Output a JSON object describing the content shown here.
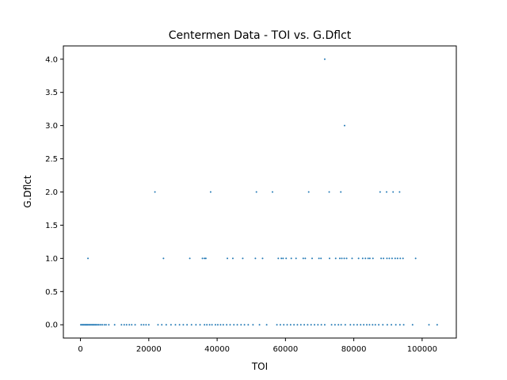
{
  "chart_data": {
    "type": "scatter",
    "title": "Centermen Data - TOI vs. G.Dflct",
    "xlabel": "TOI",
    "ylabel": "G.Dflct",
    "xlim": [
      -5000,
      110000
    ],
    "ylim": [
      -0.2,
      4.2
    ],
    "grid": false,
    "marker_color": "#1f77b4",
    "xticks": [
      0,
      20000,
      40000,
      60000,
      80000,
      100000
    ],
    "xtick_labels": [
      "0",
      "20000",
      "40000",
      "60000",
      "80000",
      "100000"
    ],
    "yticks": [
      0.0,
      0.5,
      1.0,
      1.5,
      2.0,
      2.5,
      3.0,
      3.5,
      4.0
    ],
    "ytick_labels": [
      "0.0",
      "0.5",
      "1.0",
      "1.5",
      "2.0",
      "2.5",
      "3.0",
      "3.5",
      "4.0"
    ],
    "series": [
      {
        "x": [
          100,
          400,
          700,
          900,
          1200,
          1400,
          1600,
          1800,
          2000,
          2200,
          2500,
          2800,
          3100,
          3400,
          3700,
          4000,
          4300,
          4600,
          5000,
          5400,
          5900,
          6400,
          7000,
          7500,
          8300,
          10000,
          12000,
          12800,
          13500,
          14300,
          15000,
          16000,
          17800,
          18500,
          19200,
          20000,
          22700,
          23800,
          25100,
          26500,
          27800,
          29000,
          30100,
          31200,
          32500,
          33800,
          35000,
          36300,
          37000,
          37800,
          38500,
          39500,
          40200,
          41000,
          41800,
          42800,
          43800,
          44900,
          45900,
          47000,
          48000,
          49100,
          50500,
          52400,
          54500,
          57500,
          58500,
          59500,
          60500,
          61500,
          62500,
          63500,
          64500,
          65500,
          66500,
          67500,
          68500,
          69500,
          70500,
          71500,
          73500,
          74500,
          75500,
          76300,
          77500,
          79000,
          80000,
          81000,
          82000,
          82900,
          83800,
          84600,
          85500,
          86300,
          87300,
          88500,
          89800,
          91000,
          92300,
          93500,
          94600,
          97200,
          102000,
          104400,
          2200,
          24300,
          32000,
          35700,
          36300,
          36700,
          43000,
          44600,
          47500,
          51200,
          53300,
          57900,
          58800,
          59300,
          60200,
          61700,
          63100,
          65200,
          65800,
          67800,
          69800,
          70400,
          72900,
          74700,
          75900,
          76500,
          77200,
          77900,
          79500,
          81400,
          82600,
          83400,
          84200,
          84700,
          85600,
          88000,
          88700,
          89700,
          90400,
          91200,
          92100,
          92800,
          93600,
          94400,
          98100,
          21800,
          38100,
          51500,
          56200,
          66800,
          72800,
          76200,
          87700,
          89600,
          91500,
          93400,
          77300,
          71500
        ],
        "y": [
          0,
          0,
          0,
          0,
          0,
          0,
          0,
          0,
          0,
          0,
          0,
          0,
          0,
          0,
          0,
          0,
          0,
          0,
          0,
          0,
          0,
          0,
          0,
          0,
          0,
          0,
          0,
          0,
          0,
          0,
          0,
          0,
          0,
          0,
          0,
          0,
          0,
          0,
          0,
          0,
          0,
          0,
          0,
          0,
          0,
          0,
          0,
          0,
          0,
          0,
          0,
          0,
          0,
          0,
          0,
          0,
          0,
          0,
          0,
          0,
          0,
          0,
          0,
          0,
          0,
          0,
          0,
          0,
          0,
          0,
          0,
          0,
          0,
          0,
          0,
          0,
          0,
          0,
          0,
          0,
          0,
          0,
          0,
          0,
          0,
          0,
          0,
          0,
          0,
          0,
          0,
          0,
          0,
          0,
          0,
          0,
          0,
          0,
          0,
          0,
          0,
          0,
          0,
          0,
          1,
          1,
          1,
          1,
          1,
          1,
          1,
          1,
          1,
          1,
          1,
          1,
          1,
          1,
          1,
          1,
          1,
          1,
          1,
          1,
          1,
          1,
          1,
          1,
          1,
          1,
          1,
          1,
          1,
          1,
          1,
          1,
          1,
          1,
          1,
          1,
          1,
          1,
          1,
          1,
          1,
          1,
          1,
          1,
          1,
          2,
          2,
          2,
          2,
          2,
          2,
          2,
          2,
          2,
          2,
          2,
          3,
          4
        ]
      }
    ]
  }
}
